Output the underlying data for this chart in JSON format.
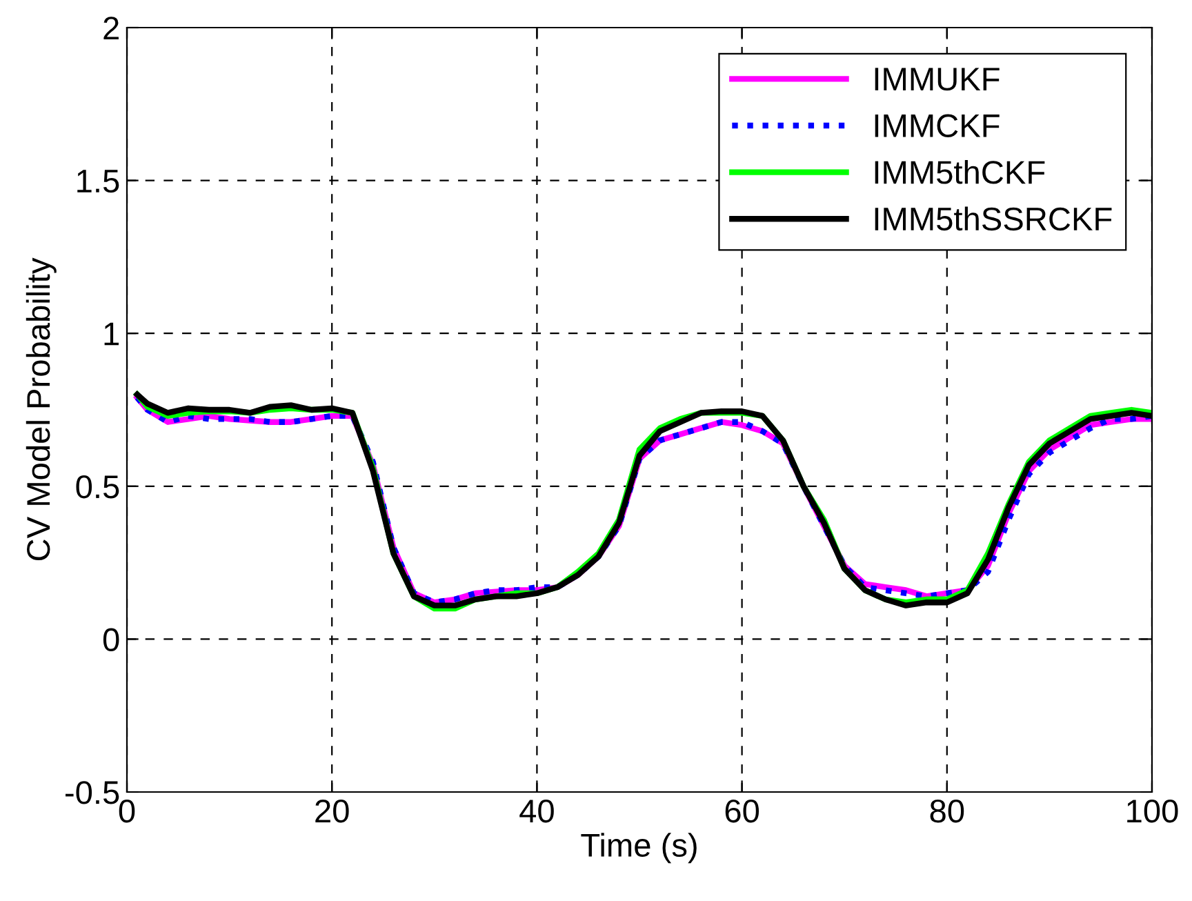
{
  "chart_data": {
    "type": "line",
    "xlabel": "Time (s)",
    "ylabel": "CV Model Probability",
    "x": [
      1,
      2,
      4,
      6,
      8,
      10,
      12,
      14,
      16,
      18,
      20,
      22,
      24,
      26,
      28,
      30,
      32,
      34,
      36,
      38,
      40,
      42,
      44,
      46,
      48,
      50,
      52,
      54,
      56,
      58,
      60,
      62,
      64,
      66,
      68,
      70,
      72,
      74,
      76,
      78,
      80,
      82,
      84,
      86,
      88,
      90,
      92,
      94,
      96,
      98,
      100
    ],
    "xlim": [
      0,
      100
    ],
    "ylim": [
      -0.5,
      2
    ],
    "xticks": [
      0,
      20,
      40,
      60,
      80,
      100
    ],
    "yticks": [
      -0.5,
      0,
      0.5,
      1,
      1.5,
      2
    ],
    "grid": true,
    "legend": "top right",
    "series": [
      {
        "name": "IMMUKF",
        "color": "#ff00ff",
        "line_style": "solid",
        "values": [
          0.79,
          0.75,
          0.71,
          0.72,
          0.73,
          0.72,
          0.715,
          0.71,
          0.71,
          0.72,
          0.73,
          0.73,
          0.57,
          0.3,
          0.15,
          0.12,
          0.13,
          0.15,
          0.155,
          0.16,
          0.16,
          0.17,
          0.21,
          0.27,
          0.37,
          0.59,
          0.65,
          0.67,
          0.69,
          0.71,
          0.7,
          0.68,
          0.64,
          0.5,
          0.37,
          0.24,
          0.18,
          0.17,
          0.16,
          0.14,
          0.15,
          0.16,
          0.24,
          0.41,
          0.55,
          0.62,
          0.66,
          0.7,
          0.71,
          0.72,
          0.72
        ]
      },
      {
        "name": "IMMCKF",
        "color": "#0000ff",
        "line_style": "dotted",
        "values": [
          0.79,
          0.75,
          0.71,
          0.73,
          0.72,
          0.72,
          0.72,
          0.71,
          0.71,
          0.72,
          0.73,
          0.73,
          0.58,
          0.3,
          0.15,
          0.12,
          0.13,
          0.15,
          0.16,
          0.16,
          0.17,
          0.17,
          0.21,
          0.27,
          0.37,
          0.59,
          0.65,
          0.67,
          0.69,
          0.71,
          0.71,
          0.68,
          0.64,
          0.5,
          0.37,
          0.24,
          0.17,
          0.16,
          0.15,
          0.14,
          0.15,
          0.16,
          0.22,
          0.39,
          0.54,
          0.61,
          0.65,
          0.69,
          0.72,
          0.72,
          0.73
        ]
      },
      {
        "name": "IMM5thCKF",
        "color": "#00ff00",
        "line_style": "solid",
        "values": [
          0.8,
          0.76,
          0.73,
          0.74,
          0.745,
          0.745,
          0.74,
          0.75,
          0.755,
          0.75,
          0.75,
          0.74,
          0.56,
          0.28,
          0.14,
          0.1,
          0.1,
          0.13,
          0.14,
          0.15,
          0.15,
          0.17,
          0.22,
          0.28,
          0.39,
          0.62,
          0.69,
          0.72,
          0.74,
          0.74,
          0.74,
          0.73,
          0.65,
          0.5,
          0.39,
          0.23,
          0.16,
          0.13,
          0.12,
          0.13,
          0.13,
          0.16,
          0.28,
          0.44,
          0.58,
          0.65,
          0.69,
          0.73,
          0.74,
          0.75,
          0.74
        ]
      },
      {
        "name": "IMM5thSSRCKF",
        "color": "#000000",
        "line_style": "solid",
        "values": [
          0.8,
          0.77,
          0.74,
          0.755,
          0.75,
          0.75,
          0.74,
          0.76,
          0.765,
          0.75,
          0.755,
          0.74,
          0.55,
          0.28,
          0.14,
          0.11,
          0.11,
          0.13,
          0.14,
          0.14,
          0.15,
          0.17,
          0.21,
          0.27,
          0.38,
          0.6,
          0.68,
          0.71,
          0.74,
          0.745,
          0.745,
          0.73,
          0.65,
          0.5,
          0.38,
          0.23,
          0.16,
          0.13,
          0.11,
          0.12,
          0.12,
          0.15,
          0.26,
          0.43,
          0.57,
          0.64,
          0.68,
          0.72,
          0.73,
          0.74,
          0.73
        ]
      }
    ]
  }
}
